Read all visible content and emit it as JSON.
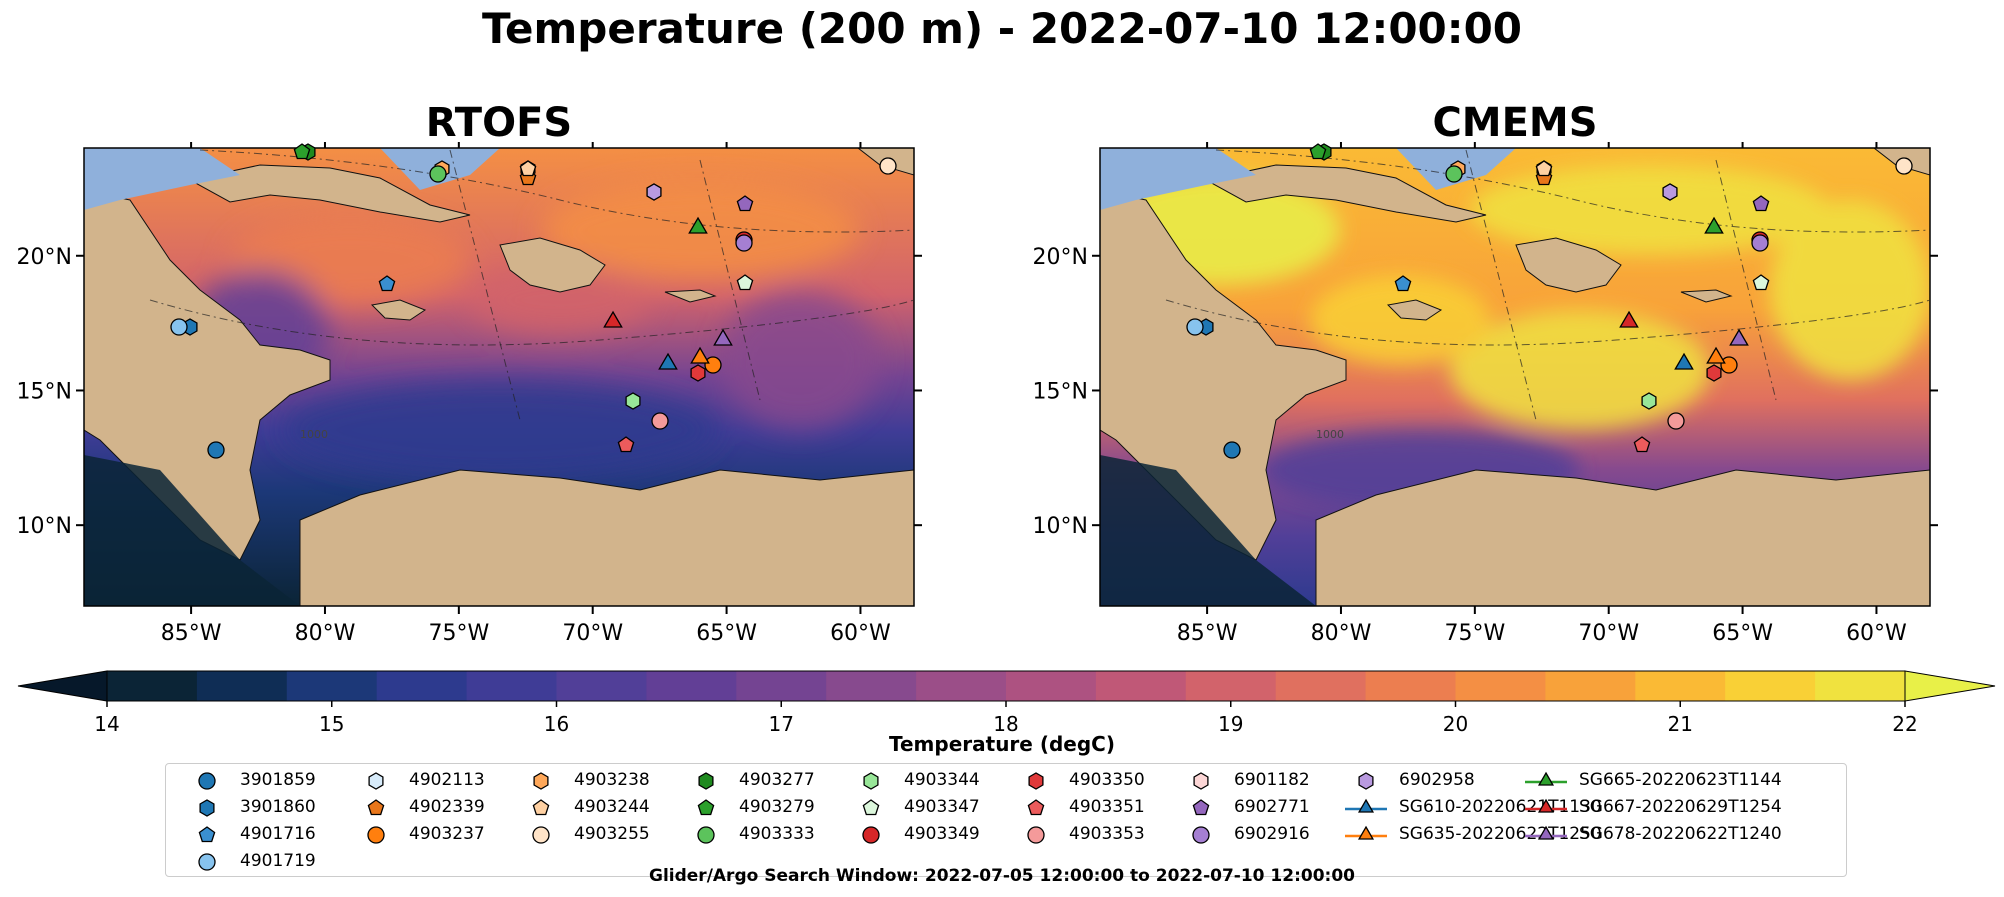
{
  "title": "Temperature (200 m) - 2022-07-10 12:00:00",
  "panels": [
    {
      "title": "RTOFS",
      "contour_label": "1000"
    },
    {
      "title": "CMEMS",
      "contour_label": "1000"
    }
  ],
  "map": {
    "lon_range": [
      -89,
      -58
    ],
    "lat_range": [
      7,
      24
    ],
    "lon_ticks": [
      {
        "value": -85,
        "label": "85°W"
      },
      {
        "value": -80,
        "label": "80°W"
      },
      {
        "value": -75,
        "label": "75°W"
      },
      {
        "value": -70,
        "label": "70°W"
      },
      {
        "value": -65,
        "label": "65°W"
      },
      {
        "value": -60,
        "label": "60°W"
      }
    ],
    "lat_ticks": [
      {
        "value": 10,
        "label": "10°N"
      },
      {
        "value": 15,
        "label": "15°N"
      },
      {
        "value": 20,
        "label": "20°N"
      }
    ],
    "colors": {
      "land": "#d2b48c",
      "shelf": "#8fb0db",
      "ocean_warm": "#f59342",
      "ocean_cold": "#0d2d4e"
    }
  },
  "colorbar": {
    "label": "Temperature (degC)",
    "min": 14,
    "max": 22,
    "step": 0.5,
    "ticks": [
      "14",
      "15",
      "16",
      "17",
      "18",
      "19",
      "20",
      "21",
      "22"
    ],
    "colors": [
      "#0b2436",
      "#0f2d55",
      "#1c3878",
      "#2d3a8e",
      "#3f3c96",
      "#513f98",
      "#623f96",
      "#744492",
      "#874a8e",
      "#9b4e88",
      "#ad5281",
      "#c05877",
      "#d2636b",
      "#e0705f",
      "#ec7e50",
      "#f48f44",
      "#f8a23a",
      "#faba35",
      "#f9d036",
      "#f0e23f"
    ],
    "under_color": "#06182a",
    "over_color": "#e8f048"
  },
  "legend_items": [
    {
      "label": "3901859",
      "marker": "circle",
      "color": "#1f77b4"
    },
    {
      "label": "3901860",
      "marker": "hexagon",
      "color": "#1f77b4"
    },
    {
      "label": "4901716",
      "marker": "pentagon",
      "color": "#3a8fd0"
    },
    {
      "label": "4901719",
      "marker": "circle",
      "color": "#87c3ee"
    },
    {
      "label": "4902113",
      "marker": "hexagon",
      "color": "#d8ecfb"
    },
    {
      "label": "4902339",
      "marker": "pentagon",
      "color": "#e8761a"
    },
    {
      "label": "4903237",
      "marker": "circle",
      "color": "#ff7f0e"
    },
    {
      "label": "4903238",
      "marker": "hexagon",
      "color": "#ffa85a"
    },
    {
      "label": "4903244",
      "marker": "pentagon",
      "color": "#ffd1a3"
    },
    {
      "label": "4903255",
      "marker": "circle",
      "color": "#ffe4c8"
    },
    {
      "label": "4903277",
      "marker": "hexagon",
      "color": "#1f8a1f"
    },
    {
      "label": "4903279",
      "marker": "pentagon",
      "color": "#2ca02c"
    },
    {
      "label": "4903333",
      "marker": "circle",
      "color": "#5cc35c"
    },
    {
      "label": "4903344",
      "marker": "hexagon",
      "color": "#98e698"
    },
    {
      "label": "4903347",
      "marker": "pentagon",
      "color": "#dcf7dc"
    },
    {
      "label": "4903349",
      "marker": "circle",
      "color": "#d62728"
    },
    {
      "label": "4903350",
      "marker": "hexagon",
      "color": "#e0393a"
    },
    {
      "label": "4903351",
      "marker": "pentagon",
      "color": "#ec5b5c"
    },
    {
      "label": "4903353",
      "marker": "circle",
      "color": "#f49a9a"
    },
    {
      "label": "6901182",
      "marker": "hexagon",
      "color": "#fcd6d6"
    },
    {
      "label": "6902771",
      "marker": "pentagon",
      "color": "#9467bd"
    },
    {
      "label": "6902916",
      "marker": "circle",
      "color": "#a57fd2"
    },
    {
      "label": "6902958",
      "marker": "hexagon",
      "color": "#b99ae0"
    },
    {
      "label": "SG610-20220621T1130",
      "marker": "triangle-line",
      "color": "#1f77b4"
    },
    {
      "label": "SG635-20220622T1250",
      "marker": "triangle-line",
      "color": "#ff7f0e"
    },
    {
      "label": "SG665-20220623T1144",
      "marker": "triangle-line",
      "color": "#2ca02c"
    },
    {
      "label": "SG667-20220629T1254",
      "marker": "triangle-line",
      "color": "#d62728"
    },
    {
      "label": "SG678-20220622T1240",
      "marker": "triangle-line",
      "color": "#9467bd"
    }
  ],
  "search_window": "Glider/Argo Search Window: 2022-07-05 12:00:00 to 2022-07-10 12:00:00"
}
